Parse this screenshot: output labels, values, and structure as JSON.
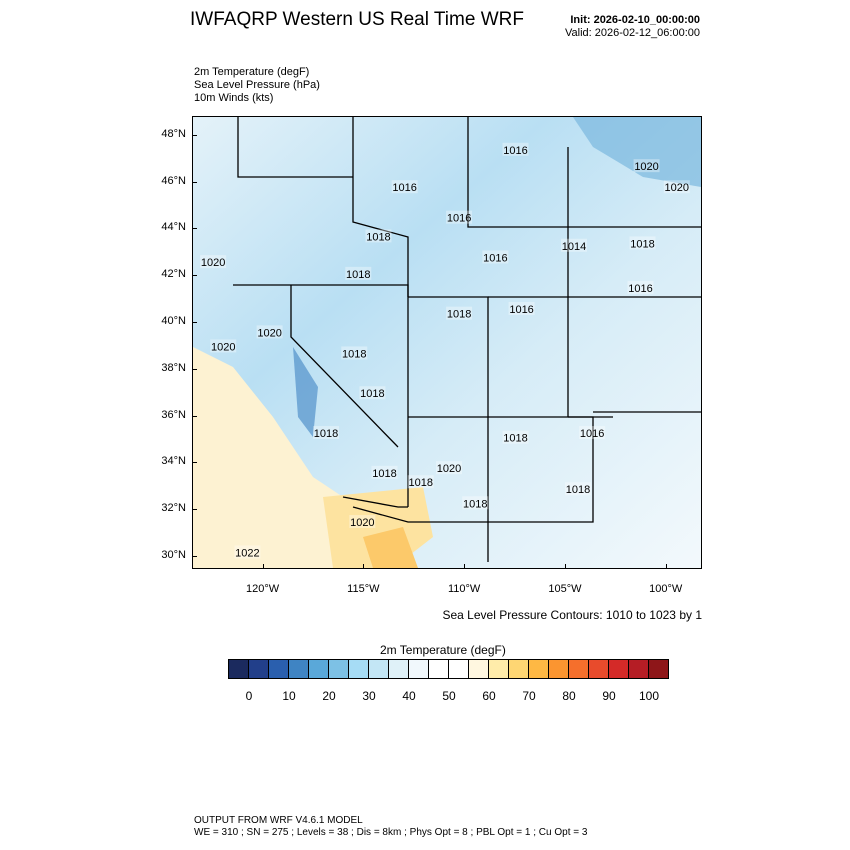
{
  "header": {
    "title": "IWFAQRP Western US Real Time WRF",
    "init": "Init: 2026-02-10_00:00:00",
    "valid": "Valid: 2026-02-12_06:00:00"
  },
  "fields": [
    "2m Temperature   (degF)",
    "Sea Level Pressure   (hPa)",
    "10m Winds   (kts)"
  ],
  "map": {
    "lat_ticks": [
      "30°N",
      "32°N",
      "34°N",
      "36°N",
      "38°N",
      "40°N",
      "42°N",
      "44°N",
      "46°N",
      "48°N"
    ],
    "lon_ticks": [
      "120°W",
      "115°W",
      "110°W",
      "105°W",
      "100°W"
    ],
    "lat_values": [
      30,
      32,
      34,
      36,
      38,
      40,
      42,
      44,
      46,
      48
    ],
    "lon_values": [
      -120,
      -115,
      -110,
      -105,
      -100
    ],
    "extent": {
      "lon": [
        -123.5,
        -98.2
      ],
      "lat": [
        29.45,
        48.8
      ]
    },
    "pressure_labels": [
      {
        "text": "1016",
        "lon": -107.5,
        "lat": 47.4
      },
      {
        "text": "1020",
        "lon": -101,
        "lat": 46.7
      },
      {
        "text": "1020",
        "lon": -99.5,
        "lat": 45.8
      },
      {
        "text": "1016",
        "lon": -113,
        "lat": 45.8
      },
      {
        "text": "1016",
        "lon": -110.3,
        "lat": 44.5
      },
      {
        "text": "1018",
        "lon": -114.3,
        "lat": 43.7
      },
      {
        "text": "1014",
        "lon": -104.6,
        "lat": 43.3
      },
      {
        "text": "1018",
        "lon": -101.2,
        "lat": 43.4
      },
      {
        "text": "1016",
        "lon": -108.5,
        "lat": 42.8
      },
      {
        "text": "1020",
        "lon": -122.5,
        "lat": 42.6
      },
      {
        "text": "1018",
        "lon": -115.3,
        "lat": 42.1
      },
      {
        "text": "1016",
        "lon": -101.3,
        "lat": 41.5
      },
      {
        "text": "1018",
        "lon": -110.3,
        "lat": 40.4
      },
      {
        "text": "1016",
        "lon": -107.2,
        "lat": 40.6
      },
      {
        "text": "1020",
        "lon": -119.7,
        "lat": 39.6
      },
      {
        "text": "1020",
        "lon": -122,
        "lat": 39
      },
      {
        "text": "1018",
        "lon": -115.5,
        "lat": 38.7
      },
      {
        "text": "1018",
        "lon": -114.6,
        "lat": 37
      },
      {
        "text": "1018",
        "lon": -116.9,
        "lat": 35.3
      },
      {
        "text": "1016",
        "lon": -103.7,
        "lat": 35.3
      },
      {
        "text": "1018",
        "lon": -107.5,
        "lat": 35.1
      },
      {
        "text": "1018",
        "lon": -114,
        "lat": 33.6
      },
      {
        "text": "1020",
        "lon": -110.8,
        "lat": 33.8
      },
      {
        "text": "1018",
        "lon": -112.2,
        "lat": 33.2
      },
      {
        "text": "1018",
        "lon": -104.4,
        "lat": 32.9
      },
      {
        "text": "1018",
        "lon": -109.5,
        "lat": 32.3
      },
      {
        "text": "1020",
        "lon": -115.1,
        "lat": 31.5
      },
      {
        "text": "1022",
        "lon": -120.8,
        "lat": 30.2
      }
    ],
    "contour_info": "Sea Level Pressure Contours: 1010 to 1023 by 1"
  },
  "colorbar": {
    "title": "2m Temperature  (degF)",
    "colors": [
      "#1b2a5e",
      "#223f8a",
      "#2a5fae",
      "#3f84c3",
      "#5aa8d9",
      "#7dc1e5",
      "#a6dcf5",
      "#c3e6f5",
      "#dff1f8",
      "#f1f8fc",
      "#ffffff",
      "#ffffff",
      "#fff7e0",
      "#ffecaa",
      "#fed673",
      "#feb844",
      "#fb9530",
      "#f56f2c",
      "#e84b2c",
      "#d42a28",
      "#b51d25",
      "#8e1619"
    ],
    "labels": [
      "0",
      "10",
      "20",
      "30",
      "40",
      "50",
      "60",
      "70",
      "80",
      "90",
      "100"
    ]
  },
  "footer": {
    "line1": "OUTPUT FROM WRF V4.6.1 MODEL",
    "line2": "WE = 310 ; SN = 275 ; Levels = 38 ; Dis = 8km ; Phys Opt = 8 ; PBL Opt = 1 ; Cu Opt = 3"
  }
}
